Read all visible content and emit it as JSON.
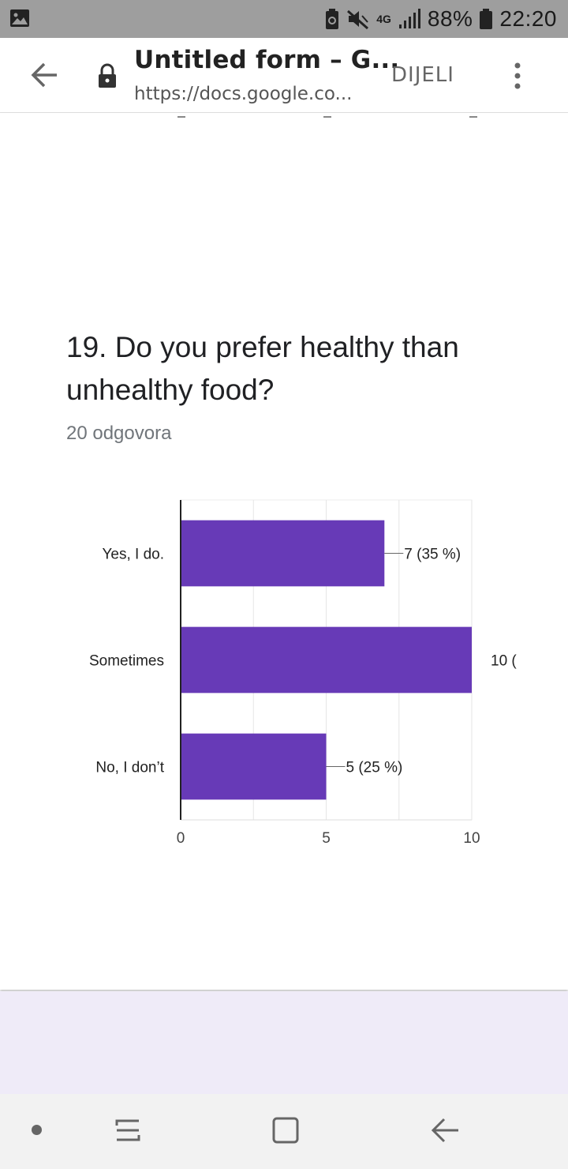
{
  "status_bar": {
    "network": "4G",
    "battery": "88%",
    "time": "22:20",
    "icons": [
      "gallery-icon",
      "battery-saver-icon",
      "mute-icon",
      "signal-icon",
      "battery-icon"
    ]
  },
  "app_bar": {
    "title": "Untitled form – G...",
    "url": "https://docs.google.co...",
    "share_label": "DIJELI",
    "icons": [
      "back-arrow-icon",
      "lock-icon",
      "more-vert-icon"
    ]
  },
  "question": {
    "text": "19. Do you prefer healthy than unhealthy food?",
    "responses": "20 odgovora"
  },
  "chart_data": {
    "type": "bar",
    "orientation": "horizontal",
    "categories": [
      "Yes, I do.",
      "Sometimes",
      "No, I don’t"
    ],
    "values": [
      7,
      10,
      5
    ],
    "data_labels": [
      "7 (35 %)",
      "10 (",
      "5 (25 %)"
    ],
    "x_ticks": [
      "0",
      "5",
      "10"
    ],
    "xlim": [
      0,
      10
    ],
    "grid": true,
    "bar_color": "#673ab7"
  },
  "nav_bar": {
    "icons": [
      "dot-icon",
      "recents-icon",
      "home-icon",
      "back-icon"
    ]
  },
  "colors": {
    "status_bar": "#9e9e9e",
    "accent": "#673ab7",
    "footer_bg": "#efebf8"
  }
}
